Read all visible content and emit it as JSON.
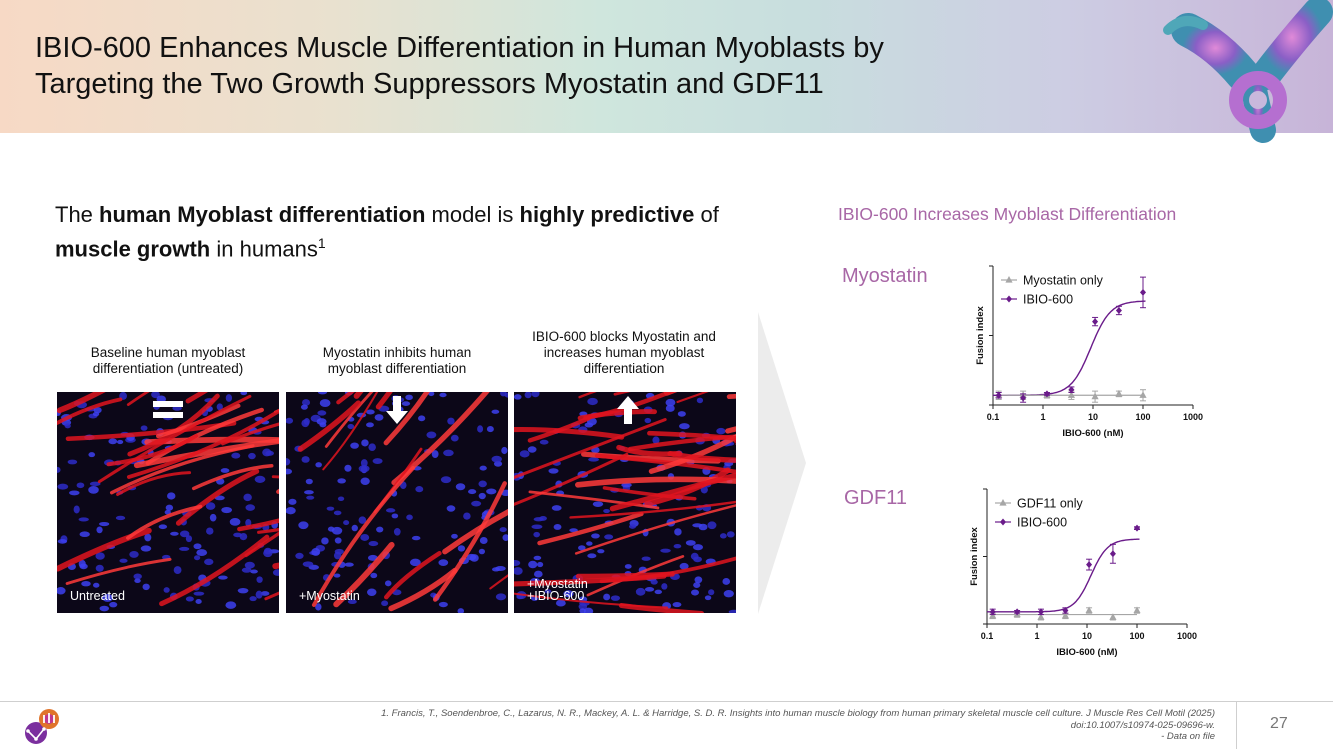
{
  "header": {
    "title_line1": "IBIO-600 Enhances Muscle Differentiation in Human Myoblasts by",
    "title_line2": "Targeting the Two Growth Suppressors Myostatin and GDF11"
  },
  "intro": {
    "p1": "The ",
    "b1": "human Myoblast differentiation",
    "p2": " model is ",
    "b2": "highly predictive",
    "p3": " of ",
    "b3": "muscle growth",
    "p4": " in humans",
    "sup": "1"
  },
  "panels": [
    {
      "caption": "Baseline human myoblast differentiation (untreated)",
      "label": "Untreated",
      "icon": "equals-icon"
    },
    {
      "caption": "Myostatin inhibits human myoblast differentiation",
      "label": "+Myostatin",
      "icon": "arrow-down-icon"
    },
    {
      "caption": "IBIO-600 blocks Myostatin and increases human myoblast differentiation",
      "label_line1": "+Myostatin",
      "label_line2": "+IBIO-600",
      "icon": "arrow-up-icon"
    }
  ],
  "results_heading": "IBIO-600 Increases Myoblast Differentiation",
  "chart_data": [
    {
      "type": "scatter",
      "panel_label": "Myostatin",
      "xlabel": "IBIO-600 (nM)",
      "ylabel": "Fusion index",
      "x_scale": "log",
      "xlim": [
        0.1,
        1000
      ],
      "x_ticks": [
        "0.1",
        "1",
        "10",
        "100",
        "1000"
      ],
      "ylim": [
        0,
        1
      ],
      "legend_position": "top-left",
      "series": [
        {
          "name": "Myostatin only",
          "color": "#a6a6a6",
          "marker": "triangle",
          "x": [
            0.13,
            0.4,
            1.2,
            3.7,
            11,
            33,
            100
          ],
          "y": [
            0.07,
            0.07,
            0.07,
            0.07,
            0.06,
            0.08,
            0.07
          ],
          "err": [
            0.03,
            0.03,
            0.02,
            0.03,
            0.04,
            0.02,
            0.04
          ]
        },
        {
          "name": "IBIO-600",
          "color": "#6a1b8a",
          "marker": "diamond",
          "x": [
            0.13,
            0.4,
            1.2,
            3.7,
            11,
            33,
            100
          ],
          "y": [
            0.07,
            0.05,
            0.08,
            0.11,
            0.6,
            0.68,
            0.81
          ],
          "err": [
            0.02,
            0.03,
            0.01,
            0.02,
            0.03,
            0.03,
            0.11
          ]
        }
      ],
      "fit": {
        "color": "#6a1b8a",
        "bottom": 0.07,
        "top": 0.75,
        "ec50": 9,
        "hill": 2.2
      }
    },
    {
      "type": "scatter",
      "panel_label": "GDF11",
      "xlabel": "IBIO-600 (nM)",
      "ylabel": "Fusion index",
      "x_scale": "log",
      "xlim": [
        0.1,
        1000
      ],
      "x_ticks": [
        "0.1",
        "1",
        "10",
        "100",
        "1000"
      ],
      "ylim": [
        0,
        1
      ],
      "legend_position": "top-left",
      "series": [
        {
          "name": "GDF11 only",
          "color": "#a6a6a6",
          "marker": "triangle",
          "x": [
            0.13,
            0.4,
            1.2,
            3.7,
            11,
            33,
            100
          ],
          "y": [
            0.06,
            0.07,
            0.05,
            0.06,
            0.1,
            0.05,
            0.1
          ],
          "err": [
            0.02,
            0.02,
            0.02,
            0.02,
            0.02,
            0.02,
            0.02
          ]
        },
        {
          "name": "IBIO-600",
          "color": "#6a1b8a",
          "marker": "diamond",
          "x": [
            0.13,
            0.4,
            1.2,
            3.7,
            11,
            33,
            100
          ],
          "y": [
            0.09,
            0.09,
            0.09,
            0.1,
            0.44,
            0.52,
            0.71
          ],
          "err": [
            0.02,
            0.01,
            0.02,
            0.02,
            0.04,
            0.07,
            0.01
          ]
        }
      ],
      "fit": {
        "color": "#6a1b8a",
        "bottom": 0.09,
        "top": 0.63,
        "ec50": 12,
        "hill": 2.6
      }
    }
  ],
  "footer": {
    "reference_line1": "1. Francis, T., Soendenbroe, C., Lazarus, N. R., Mackey, A. L. & Harridge, S. D. R. Insights into human muscle biology from human primary skeletal muscle cell culture. J Muscle Res Cell Motil (2025)",
    "reference_line2": "doi:10.1007/s10974-025-09696-w.",
    "reference_line3": "- Data on file",
    "page_number": "27"
  },
  "colors": {
    "accent": "#a867a6",
    "series_purple": "#6a1b8a",
    "series_grey": "#a6a6a6"
  }
}
